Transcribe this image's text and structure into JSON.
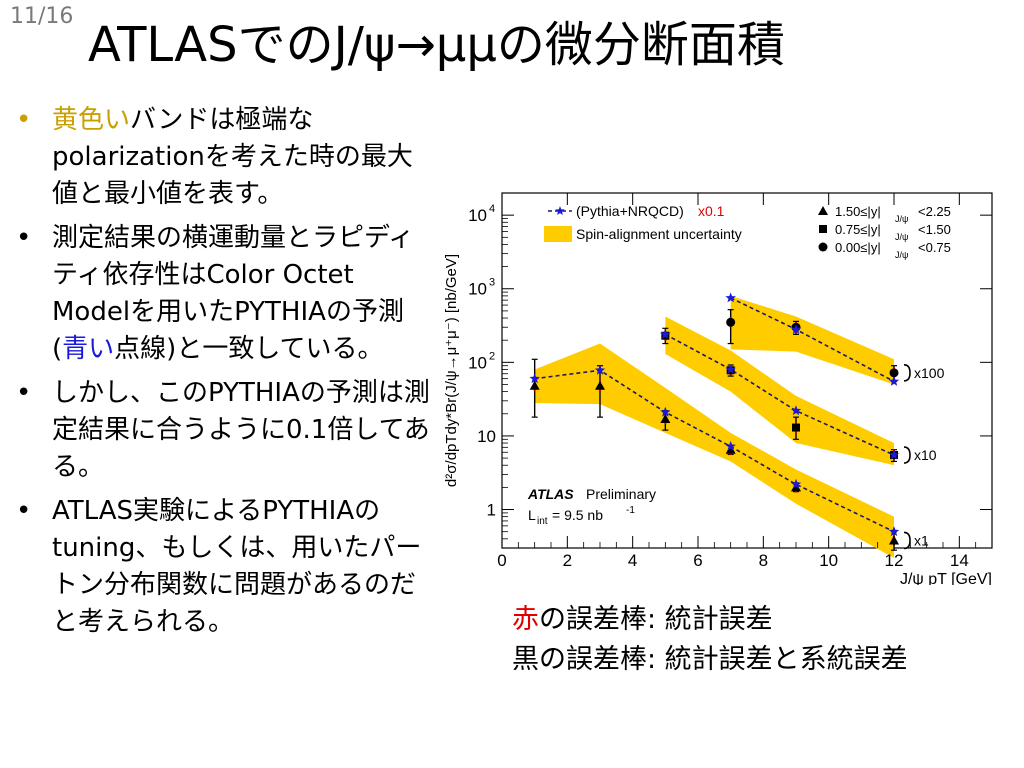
{
  "slide": {
    "page_number": "11/16",
    "title": "ATLASでのJ/ψ→μμの微分断面積"
  },
  "bullets": [
    {
      "parts": [
        {
          "text": "黄色い",
          "color": "yellow"
        },
        {
          "text": "バンドは極端なpolarizationを考えた時の最大値と最小値を表す。"
        }
      ]
    },
    {
      "parts": [
        {
          "text": "測定結果の横運動量とラピディティ依存性はColor Octet Modelを用いたPYTHIAの予測("
        },
        {
          "text": "青い",
          "color": "blue"
        },
        {
          "text": "点線)と一致している。"
        }
      ]
    },
    {
      "parts": [
        {
          "text": "しかし、このPYTHIAの予測は測定結果に合うように0.1倍してある。"
        }
      ]
    },
    {
      "parts": [
        {
          "text": "ATLAS実験によるPYTHIAのtuning、もしくは、用いたパートン分布関数に問題があるのだと考えられる。"
        }
      ]
    }
  ],
  "caption": {
    "line1_red": "赤",
    "line1_rest": "の誤差棒: 統計誤差",
    "line2": "黒の誤差棒: 統計誤差と系統誤差"
  },
  "colors": {
    "yellow": "#c8a000",
    "blue": "#1a1ad8",
    "band": "#ffcc00",
    "red": "#e00000",
    "star": "#1a1ad8"
  },
  "chart_data": {
    "type": "scatter",
    "xlabel": "J/ψ pT [GeV]",
    "ylabel": "d²σ/dpTdy*Br(J/ψ→μ⁺μ⁻) [nb/GeV]",
    "xlim": [
      0,
      15
    ],
    "ylim": [
      0.3,
      20000
    ],
    "yscale": "log",
    "x_ticks": [
      0,
      2,
      4,
      6,
      8,
      10,
      12,
      14
    ],
    "y_ticks": [
      {
        "value": 10000,
        "label": "10",
        "sup": "4"
      },
      {
        "value": 1000,
        "label": "10",
        "sup": "3"
      },
      {
        "value": 100,
        "label": "10",
        "sup": "2"
      },
      {
        "value": 10,
        "label": "10",
        "sup": ""
      },
      {
        "value": 1,
        "label": "1",
        "sup": ""
      }
    ],
    "legend_left": [
      {
        "marker": "star-dashed",
        "text": "(Pythia+NRQCD)",
        "suffix": "x0.1"
      },
      {
        "marker": "band",
        "text": "Spin-alignment uncertainty"
      }
    ],
    "legend_right": [
      {
        "marker": "triangle",
        "text": "1.50≤|y|",
        "sub": "J/ψ",
        "tail": "<2.25"
      },
      {
        "marker": "square",
        "text": "0.75≤|y|",
        "sub": "J/ψ",
        "tail": "<1.50"
      },
      {
        "marker": "circle",
        "text": "0.00≤|y|",
        "sub": "J/ψ",
        "tail": "<0.75"
      }
    ],
    "annotation": {
      "atlas": "ATLAS",
      "prelim": "Preliminary",
      "lumi": "L",
      "lumi_sub": "int",
      "lumi_val": " = 9.5 nb",
      "lumi_sup": "-1"
    },
    "series": [
      {
        "name": "1.50≤|y|J/ψ<2.25",
        "marker": "triangle",
        "scale_label": "x1",
        "x": [
          1,
          3,
          5,
          7,
          9,
          12
        ],
        "y": [
          48,
          48,
          17,
          6.5,
          2.0,
          0.38
        ],
        "err_low": [
          18,
          18,
          12,
          5.6,
          1.75,
          0.28
        ],
        "err_high": [
          110,
          90,
          22,
          7.5,
          2.3,
          0.5
        ],
        "band_low": [
          28,
          27,
          11,
          4.5,
          1.2,
          0.22
        ],
        "band_high": [
          80,
          180,
          45,
          11,
          3.5,
          0.8
        ],
        "pythia": [
          60,
          78,
          21,
          7.2,
          2.2,
          0.5
        ]
      },
      {
        "name": "0.75≤|y|J/ψ<1.50",
        "marker": "square",
        "scale_label": "x10",
        "x": [
          5,
          7,
          9,
          12
        ],
        "y": [
          230,
          78,
          13,
          5.5
        ],
        "err_low": [
          180,
          65,
          9,
          4.5
        ],
        "err_high": [
          290,
          92,
          18,
          6.5
        ],
        "band_low": [
          130,
          40,
          8,
          4.0
        ],
        "band_high": [
          420,
          145,
          35,
          8.0
        ],
        "pythia": [
          240,
          80,
          22,
          5.5
        ]
      },
      {
        "name": "0.00≤|y|J/ψ<0.75",
        "marker": "circle",
        "scale_label": "x100",
        "x": [
          7,
          9,
          12
        ],
        "y": [
          350,
          300,
          72
        ],
        "err_low": [
          180,
          240,
          55
        ],
        "err_high": [
          520,
          360,
          90
        ],
        "band_low": [
          150,
          140,
          50
        ],
        "band_high": [
          800,
          420,
          110
        ],
        "pythia": [
          750,
          280,
          55
        ]
      }
    ]
  }
}
